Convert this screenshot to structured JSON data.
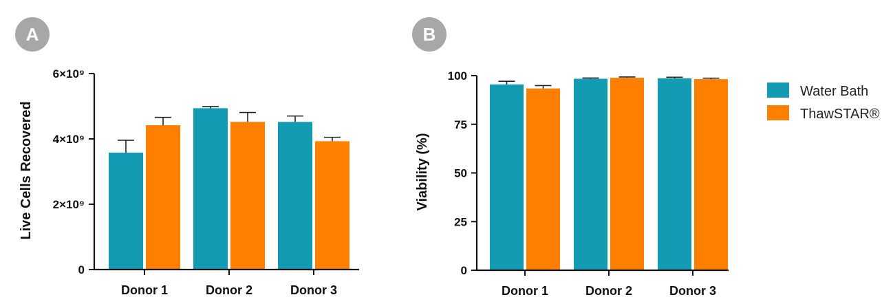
{
  "colors": {
    "water_bath": "#139bb3",
    "thawstar": "#ff8000",
    "panel_badge": "#a7a7a7",
    "axis": "#111111"
  },
  "legend": {
    "items": [
      "Water Bath",
      "ThawSTAR®"
    ]
  },
  "chart_data": [
    {
      "panel": "A",
      "type": "bar",
      "title": "",
      "xlabel": "",
      "ylabel": "Live Cells Recovered",
      "categories": [
        "Donor 1",
        "Donor 2",
        "Donor 3"
      ],
      "ylim": [
        0,
        6000000000
      ],
      "yticks": [
        {
          "value": 0,
          "label": "0"
        },
        {
          "value": 2000000000,
          "label": "2×10⁹"
        },
        {
          "value": 4000000000,
          "label": "4×10⁹"
        },
        {
          "value": 6000000000,
          "label": "6×10⁹"
        }
      ],
      "series": [
        {
          "name": "Water Bath",
          "values": [
            3580000000,
            4940000000,
            4520000000
          ],
          "errors": [
            380000000,
            50000000,
            180000000
          ]
        },
        {
          "name": "ThawSTAR®",
          "values": [
            4420000000,
            4520000000,
            3930000000
          ],
          "errors": [
            240000000,
            290000000,
            120000000
          ]
        }
      ],
      "grid": false,
      "legend": "none"
    },
    {
      "panel": "B",
      "type": "bar",
      "title": "",
      "xlabel": "",
      "ylabel": "Viability (%)",
      "categories": [
        "Donor 1",
        "Donor 2",
        "Donor 3"
      ],
      "ylim": [
        0,
        100
      ],
      "yticks": [
        {
          "value": 0,
          "label": "0"
        },
        {
          "value": 25,
          "label": "25"
        },
        {
          "value": 50,
          "label": "50"
        },
        {
          "value": 75,
          "label": "75"
        },
        {
          "value": 100,
          "label": "100"
        }
      ],
      "series": [
        {
          "name": "Water Bath",
          "values": [
            95.5,
            98.4,
            98.6
          ],
          "errors": [
            1.6,
            0.4,
            0.6
          ]
        },
        {
          "name": "ThawSTAR®",
          "values": [
            93.4,
            98.9,
            98.2
          ],
          "errors": [
            1.5,
            0.4,
            0.5
          ]
        }
      ],
      "grid": false,
      "legend": "right"
    }
  ]
}
